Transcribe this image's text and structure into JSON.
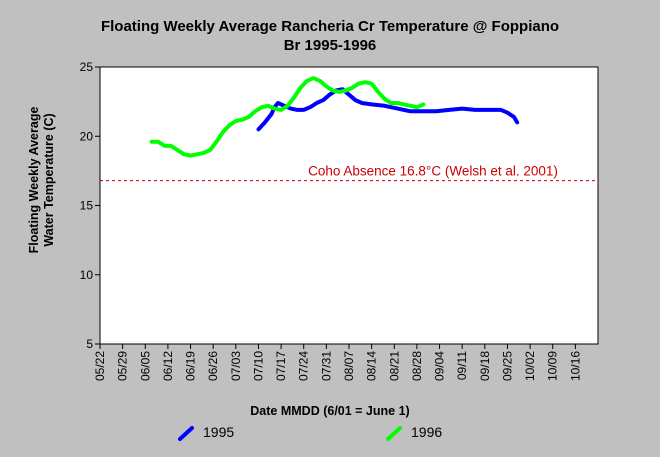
{
  "chart_data": {
    "type": "line",
    "title": [
      "Floating Weekly Average Rancheria Cr Temperature @ Foppiano",
      "Br 1995-1996"
    ],
    "xlabel": "Date MMDD (6/01 = June 1)",
    "ylabel": [
      "Floating Weekly Average",
      "Water Temperature (C)"
    ],
    "ylim": [
      5,
      25
    ],
    "yticks": [
      5,
      10,
      15,
      20,
      25
    ],
    "xlim": [
      142,
      296
    ],
    "x_unit": "day of year",
    "x_tick_days": [
      142,
      149,
      156,
      163,
      170,
      177,
      184,
      191,
      198,
      205,
      212,
      219,
      226,
      233,
      240,
      247,
      254,
      261,
      268,
      275,
      282,
      289
    ],
    "x_tick_labels": [
      "05/22",
      "05/29",
      "06/05",
      "06/12",
      "06/19",
      "06/26",
      "07/03",
      "07/10",
      "07/17",
      "07/24",
      "07/31",
      "08/07",
      "08/14",
      "08/21",
      "08/28",
      "09/04",
      "09/11",
      "09/18",
      "09/25",
      "10/02",
      "10/09",
      "10/16"
    ],
    "grid": false,
    "legend_position": "bottom",
    "reference_line": {
      "y": 16.8,
      "label": "Coho Absence 16.8°C (Welsh et al. 2001)",
      "color": "#cc0000"
    },
    "series": [
      {
        "name": "1995",
        "color": "#0000ff",
        "points": [
          [
            191,
            20.5
          ],
          [
            193,
            21.0
          ],
          [
            195,
            21.6
          ],
          [
            196,
            22.1
          ],
          [
            197,
            22.4
          ],
          [
            199,
            22.2
          ],
          [
            201,
            22.0
          ],
          [
            203,
            21.9
          ],
          [
            205,
            21.9
          ],
          [
            207,
            22.1
          ],
          [
            209,
            22.4
          ],
          [
            211,
            22.6
          ],
          [
            213,
            23.0
          ],
          [
            215,
            23.3
          ],
          [
            217,
            23.4
          ],
          [
            219,
            23.0
          ],
          [
            221,
            22.6
          ],
          [
            223,
            22.4
          ],
          [
            226,
            22.3
          ],
          [
            230,
            22.2
          ],
          [
            234,
            22.0
          ],
          [
            238,
            21.8
          ],
          [
            242,
            21.8
          ],
          [
            246,
            21.8
          ],
          [
            250,
            21.9
          ],
          [
            254,
            22.0
          ],
          [
            258,
            21.9
          ],
          [
            262,
            21.9
          ],
          [
            266,
            21.9
          ],
          [
            268,
            21.7
          ],
          [
            270,
            21.4
          ],
          [
            271,
            21.0
          ]
        ]
      },
      {
        "name": "1996",
        "color": "#00ff00",
        "points": [
          [
            158,
            19.6
          ],
          [
            160,
            19.6
          ],
          [
            162,
            19.3
          ],
          [
            164,
            19.3
          ],
          [
            166,
            19.0
          ],
          [
            168,
            18.7
          ],
          [
            170,
            18.6
          ],
          [
            172,
            18.7
          ],
          [
            174,
            18.8
          ],
          [
            176,
            19.0
          ],
          [
            178,
            19.6
          ],
          [
            180,
            20.3
          ],
          [
            182,
            20.8
          ],
          [
            184,
            21.1
          ],
          [
            186,
            21.2
          ],
          [
            188,
            21.4
          ],
          [
            190,
            21.8
          ],
          [
            192,
            22.1
          ],
          [
            194,
            22.2
          ],
          [
            196,
            22.0
          ],
          [
            198,
            21.9
          ],
          [
            200,
            22.2
          ],
          [
            202,
            22.8
          ],
          [
            204,
            23.5
          ],
          [
            206,
            24.0
          ],
          [
            208,
            24.2
          ],
          [
            210,
            24.0
          ],
          [
            212,
            23.6
          ],
          [
            214,
            23.3
          ],
          [
            216,
            23.2
          ],
          [
            218,
            23.3
          ],
          [
            220,
            23.5
          ],
          [
            222,
            23.8
          ],
          [
            224,
            23.9
          ],
          [
            226,
            23.8
          ],
          [
            228,
            23.2
          ],
          [
            230,
            22.7
          ],
          [
            232,
            22.4
          ],
          [
            234,
            22.4
          ],
          [
            236,
            22.3
          ],
          [
            238,
            22.2
          ],
          [
            240,
            22.1
          ],
          [
            242,
            22.3
          ]
        ]
      }
    ]
  }
}
